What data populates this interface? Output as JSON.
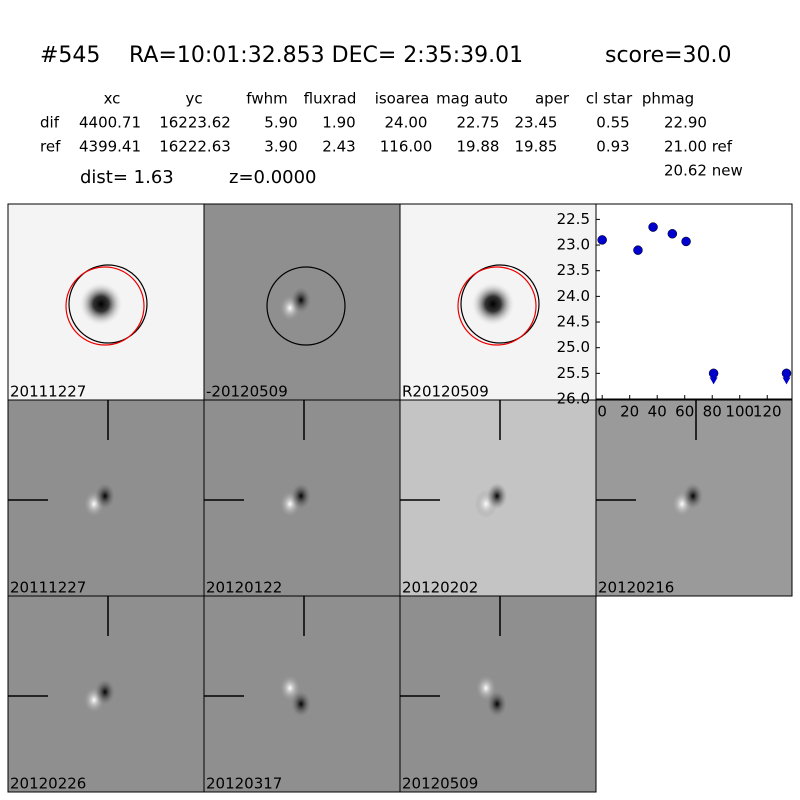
{
  "header": {
    "id": "#545",
    "coords": "RA=10:01:32.853 DEC= 2:35:39.01",
    "score": "score=30.0"
  },
  "table": {
    "columns": [
      "xc",
      "yc",
      "fwhm",
      "fluxrad",
      "isoarea",
      "mag auto",
      "aper",
      "cl star",
      "phmag"
    ],
    "rows": [
      [
        "dif",
        "4400.71",
        "16223.62",
        "5.90",
        "1.90",
        "24.00",
        "22.75",
        "23.45",
        "0.55",
        "22.90"
      ],
      [
        "ref",
        "4399.41",
        "16222.63",
        "3.90",
        "2.43",
        "116.00",
        "19.88",
        "19.85",
        "0.93",
        "21.00 ref"
      ]
    ],
    "extra": "20.62 new"
  },
  "dist": "dist=  1.63",
  "z": "z=0.0000",
  "stamps": [
    {
      "label": "20111227"
    },
    {
      "label": "-20120509"
    },
    {
      "label": "R20120509"
    },
    {
      "label": "20111227",
      "color": "#ff0000"
    },
    {
      "label": "20120122"
    },
    {
      "label": "20120202"
    },
    {
      "label": "20120216"
    },
    {
      "label": "20120226"
    },
    {
      "label": "20120317"
    },
    {
      "label": "20120509"
    }
  ],
  "chart_data": {
    "type": "scatter",
    "series": [
      {
        "marker": "circle",
        "color": "#0000cc",
        "x": [
          0,
          26,
          37,
          51,
          61
        ],
        "values": [
          22.9,
          23.1,
          22.65,
          22.78,
          22.93
        ]
      },
      {
        "marker": "limit",
        "color": "#0000cc",
        "x": [
          81,
          134
        ],
        "values": [
          25.5,
          25.5
        ]
      }
    ],
    "xlim": [
      -4.5,
      138
    ],
    "xticks": [
      0,
      20,
      40,
      60,
      80,
      100,
      120
    ],
    "ylim": [
      26.0,
      22.2
    ],
    "yticks": [
      22.5,
      {
        "value": 23,
        "label": "23.0"
      },
      23.5,
      {
        "value": 24,
        "label": "24.0"
      },
      24.5,
      {
        "value": 25,
        "label": "25.0"
      },
      25.5,
      {
        "value": 26,
        "label": "26.0"
      }
    ]
  }
}
